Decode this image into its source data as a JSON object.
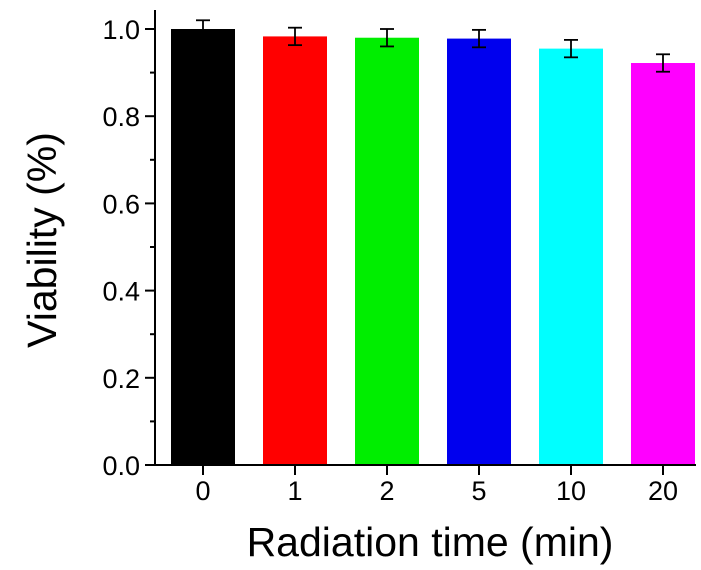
{
  "chart_data": {
    "type": "bar",
    "title": "",
    "xlabel": "Radiation time (min)",
    "ylabel": "Viability (%)",
    "categories": [
      "0",
      "1",
      "2",
      "5",
      "10",
      "20"
    ],
    "values": [
      1.0,
      0.983,
      0.98,
      0.978,
      0.955,
      0.922
    ],
    "errors": [
      0.02,
      0.02,
      0.02,
      0.02,
      0.02,
      0.02
    ],
    "colors": [
      "#000000",
      "#ff0000",
      "#00ee00",
      "#0000ee",
      "#00ffff",
      "#ff00ff"
    ],
    "ylim": [
      0,
      1.05
    ],
    "yticks": [
      "0.0",
      "0.2",
      "0.4",
      "0.6",
      "0.8",
      "1.0"
    ],
    "ytick_values": [
      0.0,
      0.2,
      0.4,
      0.6,
      0.8,
      1.0
    ],
    "grid": false,
    "legend": "none"
  }
}
